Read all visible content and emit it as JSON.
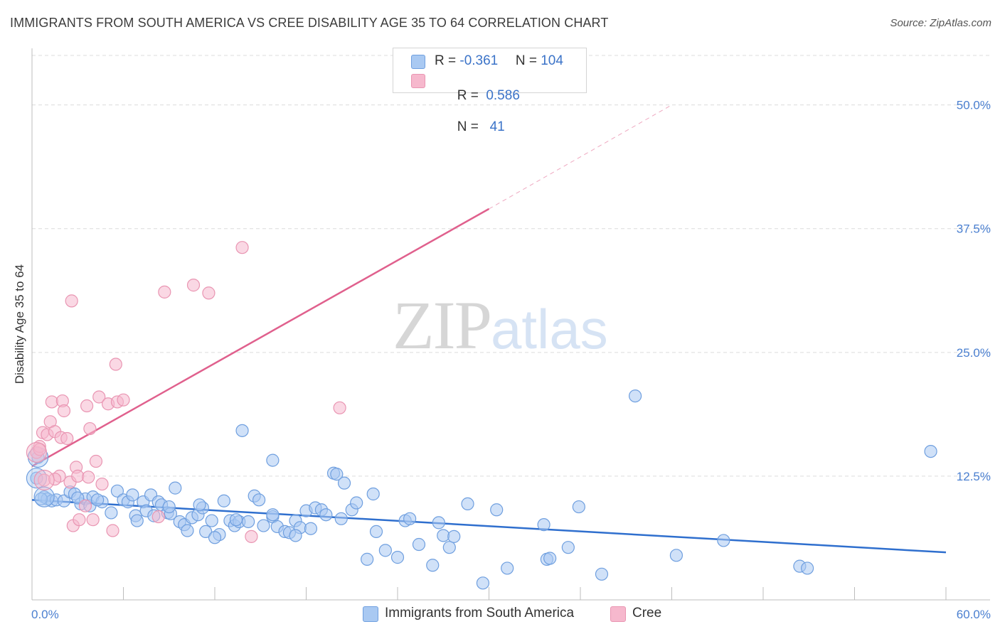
{
  "header": {
    "title": "IMMIGRANTS FROM SOUTH AMERICA VS CREE DISABILITY AGE 35 TO 64 CORRELATION CHART",
    "source": "Source: ZipAtlas.com"
  },
  "watermark": {
    "zip": "ZIP",
    "atlas": "atlas"
  },
  "legend": {
    "rows": [
      {
        "r_label": "R = ",
        "r_value": "-0.361",
        "n_label": "N = ",
        "n_value": "104",
        "color": "#a9c9f2"
      },
      {
        "r_label": "R = ",
        "r_value": " 0.586",
        "n_label": "N = ",
        "n_value": "  41",
        "color": "#f6b8cd"
      }
    ]
  },
  "bottom_legend": [
    {
      "label": "Immigrants from South America",
      "color": "#a9c9f2"
    },
    {
      "label": "Cree",
      "color": "#f6b8cd"
    }
  ],
  "chart_data": {
    "type": "scatter",
    "title": "IMMIGRANTS FROM SOUTH AMERICA VS CREE DISABILITY AGE 35 TO 64 CORRELATION CHART",
    "xlabel": "",
    "ylabel": "Disability Age 35 to 64",
    "xlim": [
      0,
      60
    ],
    "ylim": [
      0,
      50
    ],
    "x_tick_labels": [
      "0.0%",
      "60.0%"
    ],
    "y_ticks": [
      12.5,
      25.0,
      37.5,
      50.0
    ],
    "y_tick_labels": [
      "12.5%",
      "25.0%",
      "37.5%",
      "50.0%"
    ],
    "grid": "horizontal dashed",
    "legend_position": "top-center",
    "series": [
      {
        "name": "Immigrants from South America",
        "color": "#a9c9f2",
        "stroke": "#6f9fdf",
        "trend": {
          "x": [
            0,
            60
          ],
          "y": [
            10.1,
            4.8
          ],
          "color": "#2f6fce"
        },
        "points": [
          [
            0.3,
            12.3
          ],
          [
            0.4,
            14.4
          ],
          [
            0.8,
            10.4
          ],
          [
            1.0,
            10.2
          ],
          [
            1.3,
            10.0
          ],
          [
            1.6,
            10.1
          ],
          [
            2.1,
            10.0
          ],
          [
            2.5,
            10.9
          ],
          [
            2.8,
            10.7
          ],
          [
            3.2,
            9.7
          ],
          [
            3.5,
            10.2
          ],
          [
            3.8,
            9.5
          ],
          [
            4.0,
            10.4
          ],
          [
            4.6,
            9.9
          ],
          [
            5.2,
            8.8
          ],
          [
            5.6,
            11.0
          ],
          [
            6.0,
            10.1
          ],
          [
            6.3,
            9.9
          ],
          [
            6.6,
            10.6
          ],
          [
            6.8,
            8.5
          ],
          [
            7.3,
            9.9
          ],
          [
            7.5,
            9.0
          ],
          [
            7.8,
            10.6
          ],
          [
            8.0,
            8.5
          ],
          [
            8.3,
            9.9
          ],
          [
            8.5,
            9.6
          ],
          [
            8.9,
            8.8
          ],
          [
            9.1,
            8.7
          ],
          [
            9.4,
            11.3
          ],
          [
            9.7,
            7.9
          ],
          [
            10.0,
            7.6
          ],
          [
            10.2,
            7.0
          ],
          [
            10.5,
            8.3
          ],
          [
            10.9,
            8.6
          ],
          [
            11.2,
            9.3
          ],
          [
            11.4,
            6.9
          ],
          [
            11.8,
            8.0
          ],
          [
            12.3,
            6.6
          ],
          [
            12.6,
            10.0
          ],
          [
            13.0,
            8.0
          ],
          [
            13.3,
            7.5
          ],
          [
            13.6,
            7.9
          ],
          [
            14.2,
            7.9
          ],
          [
            14.6,
            10.5
          ],
          [
            14.9,
            10.1
          ],
          [
            15.2,
            7.5
          ],
          [
            15.8,
            8.4
          ],
          [
            16.1,
            7.4
          ],
          [
            16.6,
            6.9
          ],
          [
            16.9,
            6.8
          ],
          [
            17.3,
            8.0
          ],
          [
            17.6,
            7.3
          ],
          [
            18.0,
            9.0
          ],
          [
            18.3,
            7.2
          ],
          [
            18.6,
            9.3
          ],
          [
            19.0,
            9.1
          ],
          [
            19.3,
            8.6
          ],
          [
            19.8,
            12.8
          ],
          [
            20.0,
            12.7
          ],
          [
            20.5,
            11.8
          ],
          [
            21.0,
            9.1
          ],
          [
            21.3,
            9.8
          ],
          [
            22.0,
            4.1
          ],
          [
            22.4,
            10.7
          ],
          [
            22.6,
            6.9
          ],
          [
            23.2,
            5.0
          ],
          [
            24.0,
            4.3
          ],
          [
            24.5,
            8.0
          ],
          [
            24.8,
            8.2
          ],
          [
            25.4,
            5.6
          ],
          [
            26.3,
            3.5
          ],
          [
            26.7,
            7.8
          ],
          [
            27.0,
            6.5
          ],
          [
            27.4,
            5.3
          ],
          [
            27.7,
            6.4
          ],
          [
            28.6,
            9.7
          ],
          [
            29.6,
            1.7
          ],
          [
            30.5,
            9.1
          ],
          [
            31.2,
            3.2
          ],
          [
            33.6,
            7.6
          ],
          [
            33.8,
            4.1
          ],
          [
            34.0,
            4.2
          ],
          [
            35.2,
            5.3
          ],
          [
            35.9,
            9.4
          ],
          [
            37.4,
            2.6
          ],
          [
            39.6,
            20.6
          ],
          [
            42.3,
            4.5
          ],
          [
            45.4,
            6.0
          ],
          [
            50.4,
            3.4
          ],
          [
            50.9,
            3.2
          ],
          [
            59.0,
            15.0
          ],
          [
            6.9,
            8.0
          ],
          [
            12.0,
            6.3
          ],
          [
            3.0,
            10.3
          ],
          [
            4.3,
            10.1
          ],
          [
            0.6,
            10.2
          ],
          [
            13.4,
            8.1
          ],
          [
            20.3,
            8.2
          ],
          [
            15.8,
            8.6
          ],
          [
            17.3,
            6.5
          ],
          [
            9.0,
            9.4
          ],
          [
            11.0,
            9.6
          ],
          [
            13.8,
            17.1
          ],
          [
            15.8,
            14.1
          ]
        ],
        "large_points": [
          [
            0.4,
            14.4
          ],
          [
            0.3,
            12.3
          ],
          [
            0.8,
            10.4
          ]
        ]
      },
      {
        "name": "Cree",
        "color": "#f6b8cd",
        "stroke": "#e995b2",
        "trend": {
          "x": [
            0,
            30
          ],
          "y": [
            13.5,
            39.5
          ],
          "x_dashed": [
            30,
            42
          ],
          "y_dashed": [
            39.5,
            50.0
          ],
          "color": "#e0608d"
        },
        "points": [
          [
            0.3,
            14.9
          ],
          [
            0.5,
            15.5
          ],
          [
            0.7,
            16.9
          ],
          [
            0.8,
            12.1
          ],
          [
            1.0,
            16.7
          ],
          [
            1.2,
            18.0
          ],
          [
            1.3,
            20.0
          ],
          [
            1.5,
            17.0
          ],
          [
            1.8,
            12.5
          ],
          [
            1.9,
            16.4
          ],
          [
            2.0,
            20.1
          ],
          [
            2.1,
            19.1
          ],
          [
            2.3,
            16.3
          ],
          [
            2.5,
            11.9
          ],
          [
            2.6,
            30.2
          ],
          [
            2.7,
            7.5
          ],
          [
            2.9,
            13.4
          ],
          [
            3.0,
            12.5
          ],
          [
            3.1,
            8.1
          ],
          [
            3.5,
            9.5
          ],
          [
            3.6,
            19.6
          ],
          [
            3.7,
            12.4
          ],
          [
            3.8,
            17.3
          ],
          [
            4.0,
            8.1
          ],
          [
            4.2,
            14.0
          ],
          [
            4.4,
            20.5
          ],
          [
            4.6,
            11.7
          ],
          [
            5.0,
            19.8
          ],
          [
            5.3,
            7.0
          ],
          [
            5.5,
            23.8
          ],
          [
            5.6,
            20.0
          ],
          [
            6.0,
            20.2
          ],
          [
            8.3,
            8.4
          ],
          [
            8.7,
            31.1
          ],
          [
            10.6,
            31.8
          ],
          [
            11.6,
            31.0
          ],
          [
            13.8,
            35.6
          ],
          [
            14.4,
            6.4
          ],
          [
            20.2,
            19.4
          ],
          [
            0.5,
            15.2
          ],
          [
            1.5,
            12.2
          ]
        ],
        "large_points": [
          [
            0.3,
            14.9
          ],
          [
            0.8,
            12.1
          ]
        ]
      }
    ]
  }
}
